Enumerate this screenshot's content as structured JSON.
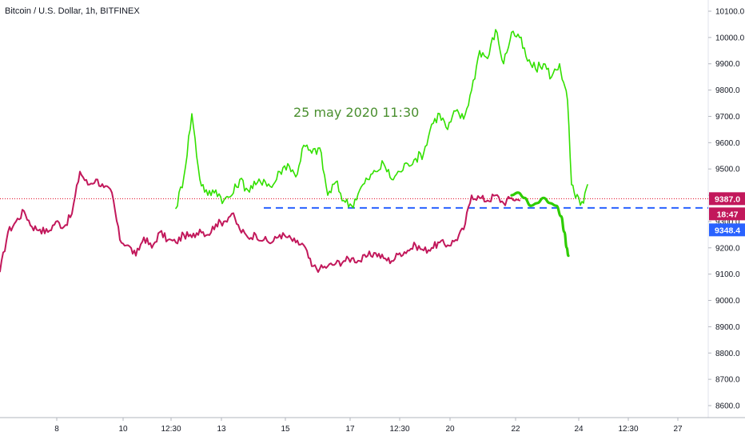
{
  "header": {
    "symbol_title": "Bitcoin / U.S. Dollar, 1h, BITFINEX"
  },
  "annotation": {
    "text": "25 may 2020 11:30"
  },
  "colors": {
    "price": "#c2185b",
    "projection": "#33e000",
    "forecast": "#2ecc00",
    "hline_dashed": "#2962ff",
    "hline_dotted": "#e0001b",
    "tag_current": "#c2185b",
    "tag_countdown": "#c2185b",
    "tag_level": "#2962ff"
  },
  "chart_data": {
    "type": "line",
    "title": "Bitcoin / U.S. Dollar, 1h, BITFINEX",
    "ylim": [
      8550,
      10150
    ],
    "y_ticks": [
      "8600.0",
      "8700.0",
      "8800.0",
      "8900.0",
      "9000.0",
      "9100.0",
      "9200.0",
      "9300.0",
      "9400.0",
      "9500.0",
      "9600.0",
      "9700.0",
      "9800.0",
      "9900.0",
      "10000.0",
      "10100.0"
    ],
    "x_ticks": [
      "8",
      "10",
      "12:30",
      "13",
      "15",
      "17",
      "12:30",
      "20",
      "22",
      "24",
      "12:30",
      "27"
    ],
    "grid": false,
    "axis_tags": [
      {
        "label": "9387.0",
        "value": 9387.0,
        "kind": "current"
      },
      {
        "label": "18:47",
        "value": 9360.0,
        "kind": "countdown"
      },
      {
        "label": "9348.4",
        "value": 9348.4,
        "kind": "level"
      }
    ],
    "horizontal_lines": [
      {
        "value": 9387.0,
        "style": "dotted"
      },
      {
        "value": 9352.0,
        "style": "dashed"
      }
    ],
    "series": [
      {
        "role": "price",
        "x": [
          0,
          10,
          20,
          30,
          40,
          50,
          60,
          70,
          80,
          90,
          100,
          110,
          120,
          130,
          140,
          150,
          160,
          170,
          180,
          190,
          200,
          210,
          220,
          230,
          240,
          250,
          260,
          270,
          280,
          290,
          300,
          310,
          320,
          330,
          340,
          350,
          360,
          370,
          380,
          390,
          400,
          410,
          420,
          430,
          440,
          450,
          460,
          470,
          480,
          490,
          500,
          510,
          520,
          530,
          540,
          550,
          560,
          570,
          580,
          590,
          600,
          610,
          620,
          630,
          640,
          650
        ],
        "y": [
          9110,
          9260,
          9300,
          9340,
          9280,
          9270,
          9260,
          9300,
          9280,
          9330,
          9490,
          9440,
          9460,
          9430,
          9410,
          9230,
          9210,
          9170,
          9240,
          9200,
          9260,
          9230,
          9220,
          9250,
          9240,
          9270,
          9250,
          9290,
          9300,
          9330,
          9270,
          9240,
          9250,
          9230,
          9220,
          9250,
          9240,
          9220,
          9210,
          9130,
          9120,
          9130,
          9140,
          9150,
          9160,
          9150,
          9170,
          9180,
          9160,
          9150,
          9180,
          9190,
          9210,
          9190,
          9200,
          9220,
          9210,
          9230,
          9270,
          9400,
          9390,
          9380,
          9400,
          9370,
          9390,
          9380
        ]
      },
      {
        "role": "projection",
        "x": [
          220,
          230,
          240,
          250,
          260,
          270,
          280,
          290,
          300,
          310,
          320,
          330,
          340,
          350,
          360,
          370,
          380,
          390,
          400,
          410,
          420,
          430,
          440,
          450,
          460,
          470,
          480,
          490,
          500,
          510,
          520,
          530,
          540,
          550,
          560,
          570,
          580,
          590,
          600,
          610,
          620,
          630,
          640,
          650,
          660,
          670,
          680,
          690,
          700,
          705,
          710,
          715,
          720,
          730,
          735
        ],
        "y": [
          9350,
          9470,
          9710,
          9460,
          9400,
          9420,
          9380,
          9400,
          9460,
          9420,
          9440,
          9460,
          9430,
          9490,
          9520,
          9470,
          9590,
          9560,
          9580,
          9400,
          9450,
          9380,
          9360,
          9420,
          9460,
          9490,
          9520,
          9460,
          9490,
          9520,
          9540,
          9560,
          9670,
          9710,
          9650,
          9720,
          9690,
          9800,
          9950,
          9920,
          10030,
          9900,
          10020,
          10000,
          9910,
          9880,
          9900,
          9850,
          9900,
          9830,
          9760,
          9440,
          9390,
          9370,
          9440
        ]
      },
      {
        "role": "forecast",
        "x": [
          640,
          648,
          656,
          664,
          672,
          680,
          688,
          696,
          702,
          706,
          709,
          711
        ],
        "y": [
          9400,
          9410,
          9390,
          9360,
          9370,
          9390,
          9370,
          9360,
          9320,
          9260,
          9200,
          9170
        ]
      }
    ]
  }
}
